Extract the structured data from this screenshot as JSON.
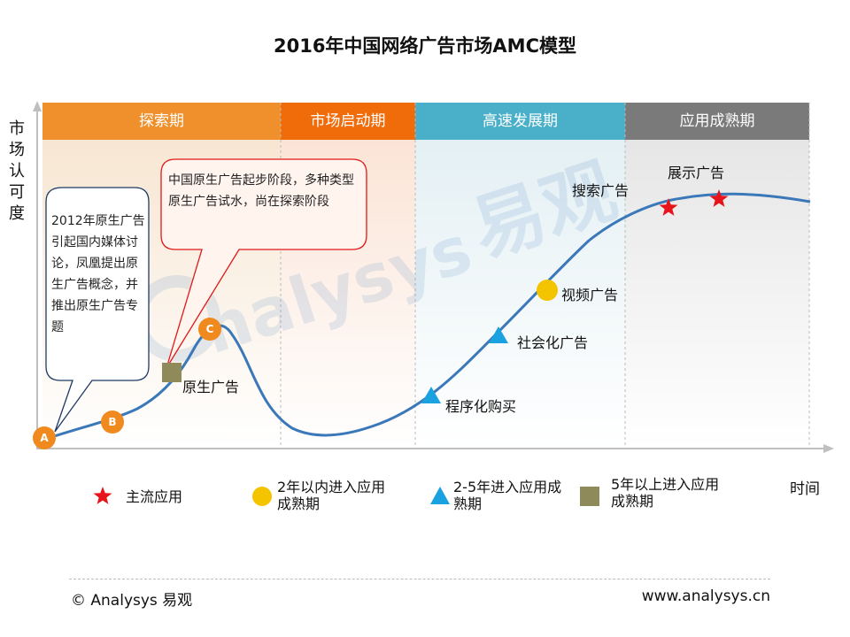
{
  "chart_data": {
    "type": "line",
    "title": "2016年中国网络广告市场AMC模型",
    "ylabel": "市场认可度",
    "xlabel": "时间",
    "phases": [
      {
        "name": "探索期",
        "color": "#f0902c"
      },
      {
        "name": "市场启动期",
        "color": "#f06c0a"
      },
      {
        "name": "高速发展期",
        "color": "#4aafc8"
      },
      {
        "name": "应用成熟期",
        "color": "#7a7a7a"
      }
    ],
    "nodes": [
      "A",
      "B",
      "C"
    ],
    "callouts": [
      "2012年原生广告引起国内媒体讨论，凤凰提出原生广告概念，并推出原生广告专题",
      "中国原生广告起步阶段，多种类型原生广告试水，尚在探索阶段"
    ],
    "ad_types": [
      {
        "name": "原生广告",
        "marker": "square"
      },
      {
        "name": "程序化购买",
        "marker": "triangle"
      },
      {
        "name": "社会化广告",
        "marker": "triangle"
      },
      {
        "name": "视频广告",
        "marker": "circle"
      },
      {
        "name": "搜索广告",
        "marker": "star"
      },
      {
        "name": "展示广告",
        "marker": "star"
      }
    ],
    "legend": [
      {
        "label": "主流应用",
        "marker": "star",
        "color": "#e8141c"
      },
      {
        "label": "2年以内进入应用成熟期",
        "marker": "circle",
        "color": "#f5c400"
      },
      {
        "label": "2-5年进入应用成熟期",
        "marker": "triangle",
        "color": "#1aa1e0"
      },
      {
        "label": "5年以上进入应用成熟期",
        "marker": "square",
        "color": "#8e8a5a"
      }
    ],
    "colors": {
      "curve": "#3a78b9",
      "node": "#f08a1e"
    }
  },
  "footer": {
    "left": "© Analysys 易观",
    "right": "www.analysys.cn"
  }
}
